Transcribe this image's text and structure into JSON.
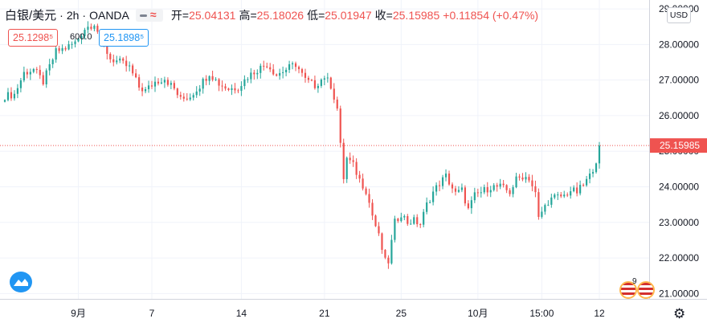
{
  "header": {
    "symbol": "白银/美元",
    "interval": "2h",
    "source": "OANDA",
    "open_label": "开",
    "open": "25.04131",
    "high_label": "高",
    "high": "25.18026",
    "low_label": "低",
    "low": "25.01947",
    "close_label": "收",
    "close": "25.15985",
    "change": "+0.11854 (+0.47%)"
  },
  "quote": {
    "sell": "25.1298⁵",
    "spread": "600.0",
    "buy": "25.1898⁵"
  },
  "currency_button": "USD",
  "current_price_label": "25.15985",
  "notification_count": "9",
  "colors": {
    "up": "#26a69a",
    "down": "#ef5350",
    "grid": "#f0f3fa",
    "axis_text": "#131722",
    "accent": "#2196f3"
  },
  "icons": [
    "tradingview-logo-icon",
    "economic-events-flag-icon",
    "settings-gear-icon"
  ],
  "chart_data": {
    "type": "candlestick",
    "y_axis": {
      "ticks": [
        21,
        22,
        23,
        24,
        25,
        26,
        27,
        28,
        29
      ],
      "tick_labels": [
        "21.00000",
        "22.00000",
        "23.00000",
        "24.00000",
        "25.00000",
        "26.00000",
        "27.00000",
        "28.00000",
        "29.00000"
      ],
      "ylim": [
        20.85,
        29.25
      ],
      "position": "right"
    },
    "x_axis": {
      "tick_labels": [
        "9月",
        "7",
        "14",
        "21",
        "25",
        "10月",
        "15:00",
        "12"
      ],
      "tick_bar_index": [
        23,
        46,
        74,
        100,
        124,
        148,
        168,
        186
      ]
    },
    "current_price": 25.15985,
    "path": [
      [
        0,
        26.55
      ],
      [
        3,
        26.6
      ],
      [
        6,
        27.2
      ],
      [
        9,
        27.3
      ],
      [
        12,
        26.95
      ],
      [
        16,
        27.8
      ],
      [
        19,
        27.9
      ],
      [
        22,
        28.05
      ],
      [
        25,
        28.45
      ],
      [
        28,
        28.6
      ],
      [
        30,
        28.15
      ],
      [
        33,
        27.6
      ],
      [
        36,
        27.5
      ],
      [
        39,
        27.35
      ],
      [
        42,
        26.8
      ],
      [
        44,
        26.7
      ],
      [
        47,
        26.95
      ],
      [
        50,
        27.05
      ],
      [
        53,
        26.75
      ],
      [
        55,
        26.45
      ],
      [
        58,
        26.55
      ],
      [
        61,
        26.85
      ],
      [
        64,
        27.2
      ],
      [
        67,
        26.9
      ],
      [
        70,
        26.75
      ],
      [
        73,
        26.8
      ],
      [
        76,
        27.1
      ],
      [
        79,
        27.3
      ],
      [
        82,
        27.45
      ],
      [
        85,
        27.15
      ],
      [
        88,
        27.3
      ],
      [
        91,
        27.45
      ],
      [
        94,
        27.0
      ],
      [
        97,
        26.85
      ],
      [
        100,
        27.1
      ],
      [
        102,
        26.85
      ],
      [
        104,
        26.2
      ],
      [
        105,
        25.15
      ],
      [
        106,
        24.25
      ],
      [
        107,
        24.8
      ],
      [
        109,
        24.6
      ],
      [
        111,
        24.2
      ],
      [
        113,
        23.9
      ],
      [
        115,
        23.2
      ],
      [
        117,
        22.6
      ],
      [
        119,
        21.9
      ],
      [
        120,
        21.9
      ],
      [
        121,
        22.45
      ],
      [
        122,
        23.0
      ],
      [
        124,
        23.25
      ],
      [
        126,
        23.0
      ],
      [
        128,
        23.05
      ],
      [
        130,
        22.95
      ],
      [
        132,
        23.5
      ],
      [
        134,
        23.85
      ],
      [
        136,
        24.1
      ],
      [
        138,
        24.3
      ],
      [
        141,
        23.8
      ],
      [
        143,
        23.9
      ],
      [
        145,
        23.35
      ],
      [
        147,
        23.75
      ],
      [
        149,
        23.85
      ],
      [
        152,
        24.0
      ],
      [
        155,
        24.0
      ],
      [
        158,
        23.85
      ],
      [
        160,
        24.2
      ],
      [
        162,
        24.3
      ],
      [
        164,
        24.25
      ],
      [
        166,
        23.8
      ],
      [
        167,
        23.1
      ],
      [
        168,
        23.3
      ],
      [
        170,
        23.6
      ],
      [
        172,
        23.7
      ],
      [
        175,
        23.75
      ],
      [
        177,
        23.9
      ],
      [
        179,
        23.85
      ],
      [
        181,
        24.05
      ],
      [
        183,
        24.3
      ],
      [
        185,
        24.75
      ],
      [
        186,
        25.16
      ]
    ]
  }
}
